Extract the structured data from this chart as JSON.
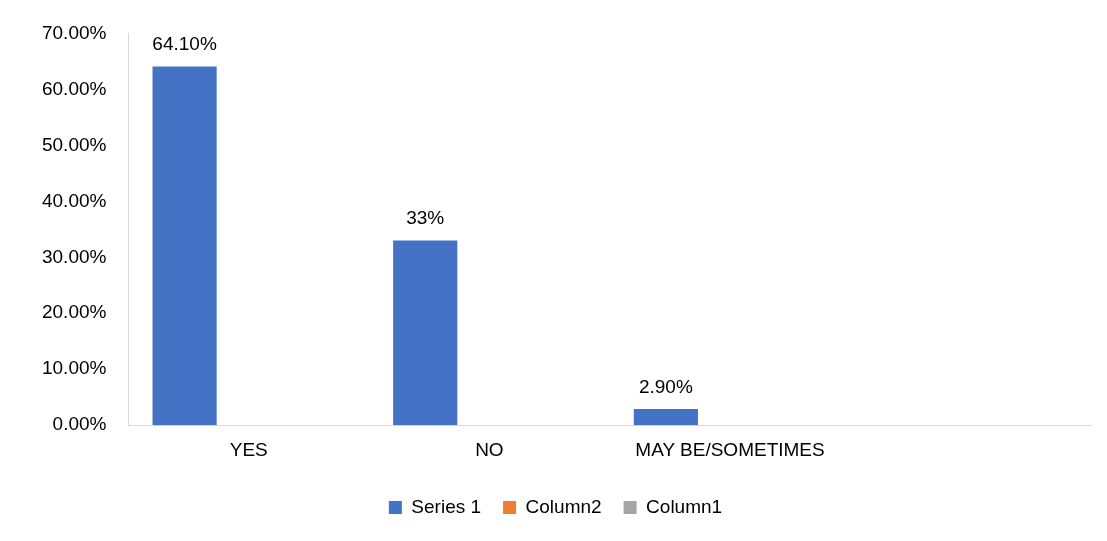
{
  "chart_data": {
    "type": "bar",
    "categories": [
      "YES",
      "NO",
      "MAY BE/SOMETIMES",
      null
    ],
    "series": [
      {
        "name": "Series 1",
        "color": "#4472c4",
        "values": [
          64.1,
          33,
          2.9,
          null
        ],
        "value_labels": [
          "64.10%",
          "33%",
          "2.90%",
          null
        ]
      },
      {
        "name": "Column2",
        "color": "#ed7d31",
        "values": [
          null,
          null,
          null,
          null
        ]
      },
      {
        "name": "Column1",
        "color": "#a5a5a5",
        "values": [
          null,
          null,
          null,
          null
        ]
      }
    ],
    "ylim": [
      0,
      70
    ],
    "yticks": [
      {
        "value": 0,
        "label": "0.00%"
      },
      {
        "value": 10,
        "label": "10.00%"
      },
      {
        "value": 20,
        "label": "20.00%"
      },
      {
        "value": 30,
        "label": "30.00%"
      },
      {
        "value": 40,
        "label": "40.00%"
      },
      {
        "value": 50,
        "label": "50.00%"
      },
      {
        "value": 60,
        "label": "60.00%"
      },
      {
        "value": 70,
        "label": "70.00%"
      }
    ],
    "grid": false,
    "legend": "bottom"
  }
}
